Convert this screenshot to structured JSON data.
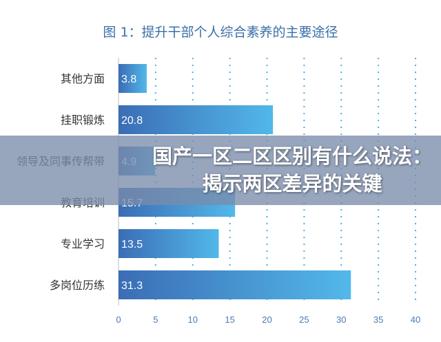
{
  "banner": {
    "headline": "国产一区二区区别有什么说法：揭示两区差异的关键"
  },
  "chart_data": {
    "type": "bar",
    "orientation": "horizontal",
    "title": "图 1：提升干部个人综合素养的主要途径",
    "categories": [
      "其他方面",
      "挂职锻炼",
      "领导及同事传帮带",
      "教育培训",
      "专业学习",
      "多岗位历练"
    ],
    "values": [
      3.8,
      20.8,
      4.9,
      15.7,
      13.5,
      31.3
    ],
    "xlim": [
      0,
      40
    ],
    "xticks": [
      0,
      5,
      10,
      15,
      20,
      25,
      30,
      35,
      40
    ],
    "grid": "vertical-dotted",
    "colors": {
      "bar_start": "#3b6db5",
      "bar_end": "#52b8ea",
      "grid": "#4aaee0",
      "axis_text": "#4a7ab0",
      "label_text": "#333333"
    }
  }
}
